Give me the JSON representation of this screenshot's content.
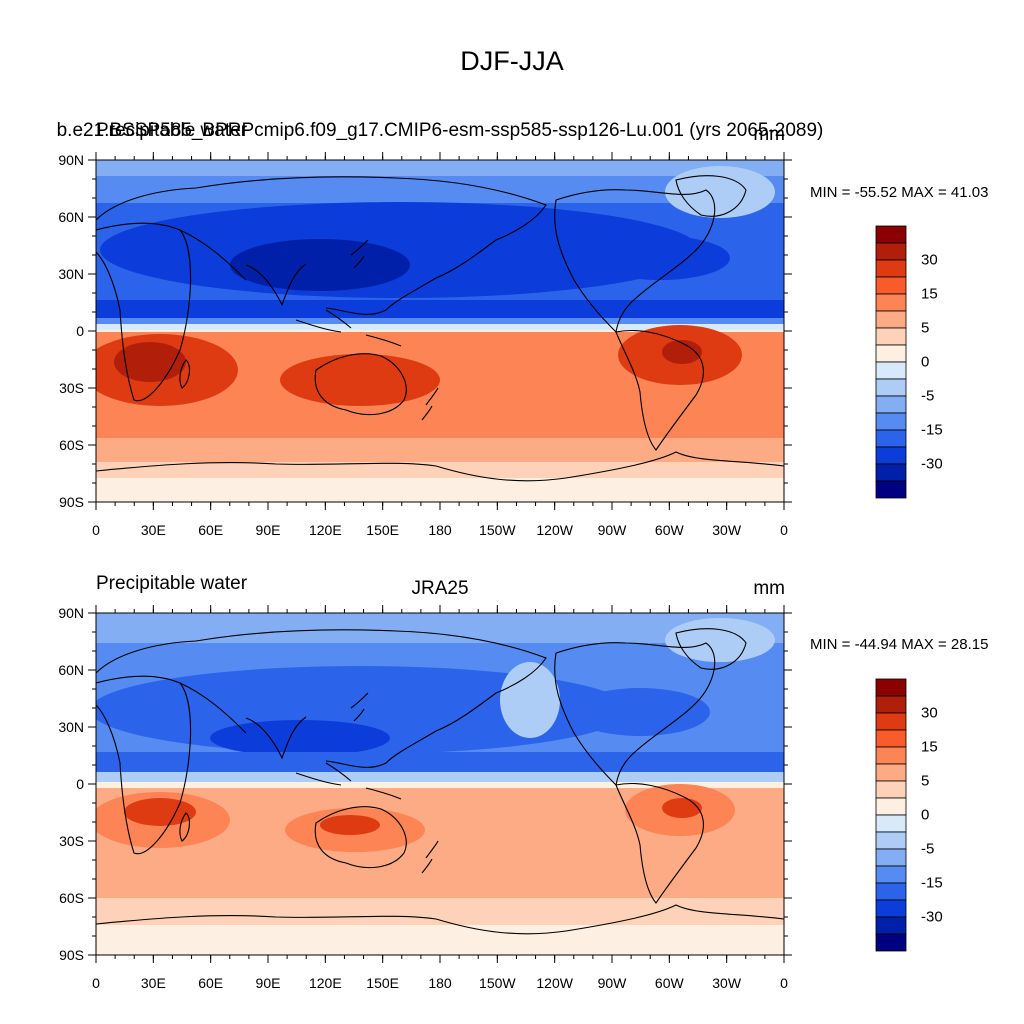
{
  "title": "DJF-JJA",
  "panels": [
    {
      "left_label": "Precipitable water",
      "center_label": "b.e21.BSSP585_BPRPcmip6.f09_g17.CMIP6-esm-ssp585-ssp126-Lu.001 (yrs 2065-2089)",
      "units": "mm",
      "minmax": "MIN = -55.52 MAX =  41.03"
    },
    {
      "left_label": "Precipitable water",
      "center_label": "JRA25",
      "units": "mm",
      "minmax": "MIN = -44.94 MAX =  28.15"
    }
  ],
  "lat_ticks": [
    "90N",
    "60N",
    "30N",
    "0",
    "30S",
    "60S",
    "90S"
  ],
  "lon_ticks": [
    "0",
    "30E",
    "60E",
    "90E",
    "120E",
    "150E",
    "180",
    "150W",
    "120W",
    "90W",
    "60W",
    "30W",
    "0"
  ],
  "colorbar": {
    "labels": [
      "30",
      "15",
      "5",
      "0",
      "-5",
      "-15",
      "-30"
    ],
    "colors": [
      "#8b0000",
      "#b11e0a",
      "#de3b13",
      "#fa5b2a",
      "#fd8455",
      "#fcab85",
      "#fdd2b8",
      "#fdf0e2",
      "#d8e9f9",
      "#aecdf6",
      "#83aef4",
      "#568cf1",
      "#2b63ea",
      "#0c3cd9",
      "#0020aa",
      "#000080"
    ]
  },
  "chart_data": {
    "type": "heatmap",
    "variable": "Precipitable water",
    "units": "mm",
    "season": "DJF-JJA",
    "levels_labeled": [
      30,
      15,
      5,
      0,
      -5,
      -15,
      -30
    ],
    "panels": [
      {
        "dataset": "b.e21.BSSP585_BPRPcmip6.f09_g17.CMIP6-esm-ssp585-ssp126-Lu.001 (yrs 2065-2089)",
        "min": -55.52,
        "max": 41.03
      },
      {
        "dataset": "JRA25",
        "min": -44.94,
        "max": 28.15
      }
    ]
  }
}
